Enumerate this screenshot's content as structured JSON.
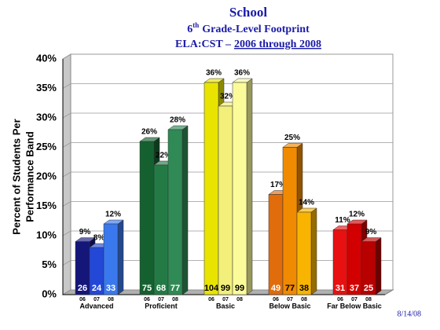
{
  "chart_data": {
    "type": "bar3d",
    "title": "School",
    "subtitle": {
      "lead": "6",
      "sup": "th",
      "rest": "Grade-Level Footprint"
    },
    "subtitle2": {
      "plain": "ELA:CST –",
      "underlined": "2006 through 2008"
    },
    "y_label": [
      "Percent of Students Per",
      "Performance Band"
    ],
    "date": "8/14/08",
    "ylim": [
      0,
      40
    ],
    "yticks": [
      {
        "value": 0,
        "label": "0%"
      },
      {
        "value": 5,
        "label": "5%"
      },
      {
        "value": 10,
        "label": "10%"
      },
      {
        "value": 15,
        "label": "15%"
      },
      {
        "value": 20,
        "label": "20%"
      },
      {
        "value": 25,
        "label": "25%"
      },
      {
        "value": 30,
        "label": "30%"
      },
      {
        "value": 35,
        "label": "35%"
      },
      {
        "value": 40,
        "label": "40%"
      }
    ],
    "grid": true,
    "groups": [
      {
        "name": "Advanced",
        "years": [
          "06",
          "07",
          "08"
        ],
        "values": [
          9,
          8,
          12
        ],
        "value_labels": [
          "9%",
          "8%",
          "12%"
        ],
        "counts": [
          26,
          24,
          33
        ],
        "colors": [
          "#14167a",
          "#2348d8",
          "#3a78ee"
        ]
      },
      {
        "name": "Proficient",
        "years": [
          "06",
          "07",
          "08"
        ],
        "values": [
          26,
          22,
          28
        ],
        "value_labels": [
          "26%",
          "22%",
          "28%"
        ],
        "counts": [
          75,
          68,
          77
        ],
        "colors": [
          "#14612f",
          "#237a45",
          "#2f8a55"
        ]
      },
      {
        "name": "Basic",
        "years": [
          "06",
          "07",
          "08"
        ],
        "values": [
          36,
          32,
          36
        ],
        "value_labels": [
          "36%",
          "32%",
          "36%"
        ],
        "counts": [
          104,
          99,
          99
        ],
        "colors": [
          "#e8e400",
          "#f2f07a",
          "#fbfb9a"
        ]
      },
      {
        "name": "Below Basic",
        "years": [
          "06",
          "07",
          "08"
        ],
        "values": [
          17,
          25,
          14
        ],
        "value_labels": [
          "17%",
          "25%",
          "14%"
        ],
        "counts": [
          49,
          77,
          38
        ],
        "colors": [
          "#e06c0c",
          "#f08a00",
          "#f8b400"
        ]
      },
      {
        "name": "Far Below Basic",
        "years": [
          "06",
          "07",
          "08"
        ],
        "values": [
          11,
          12,
          9
        ],
        "value_labels": [
          "11%",
          "12%",
          "9%"
        ],
        "counts": [
          31,
          37,
          25
        ],
        "colors": [
          "#e81010",
          "#d20000",
          "#b80000"
        ]
      }
    ]
  }
}
